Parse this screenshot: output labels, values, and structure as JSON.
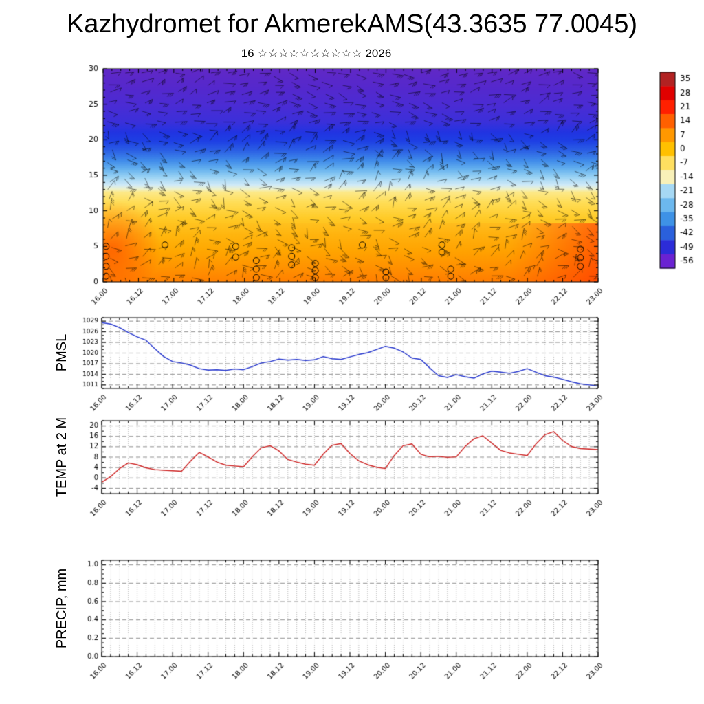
{
  "title": "Kazhydromet for AkmerekAMS(43.3635 77.0045)",
  "subtitle": "16 ☆☆☆☆☆☆☆☆☆☆ 2026",
  "time_axis": {
    "span_hours": 168,
    "major_step_hours": 12,
    "minor_step_hours": 3,
    "tick_labels": [
      "16.00",
      "16.12",
      "17.00",
      "17.12",
      "18.00",
      "18.12",
      "19.00",
      "19.12",
      "20.00",
      "20.12",
      "21.00",
      "21.12",
      "22.00",
      "22.12",
      "23.00"
    ]
  },
  "chart_data": [
    {
      "type": "heatmap",
      "name": "wind-temperature-height-cross-section",
      "ylim": [
        0,
        30
      ],
      "ytick_major": 5,
      "ytick_minor": 1,
      "colorbar_levels": [
        "35",
        "28",
        "21",
        "14",
        "7",
        "0",
        "-7",
        "-14",
        "-21",
        "-28",
        "-35",
        "-42",
        "-49",
        "-56"
      ],
      "colorbar_colors": [
        "#b22222",
        "#e00000",
        "#ff2000",
        "#ff6000",
        "#ff9800",
        "#ffc000",
        "#ffdf60",
        "#f8f0b8",
        "#a6d8f4",
        "#6cb8ee",
        "#3e92e6",
        "#2a60dc",
        "#2c2cd8",
        "#6a22d2"
      ],
      "gradient": [
        {
          "f": 0.0,
          "c": "#6128c6"
        },
        {
          "f": 0.08,
          "c": "#5628cc"
        },
        {
          "f": 0.17,
          "c": "#4b2cd4"
        },
        {
          "f": 0.25,
          "c": "#3b30da"
        },
        {
          "f": 0.3,
          "c": "#2134e2"
        },
        {
          "f": 0.34,
          "c": "#1e40e4"
        },
        {
          "f": 0.38,
          "c": "#2a5ce4"
        },
        {
          "f": 0.43,
          "c": "#3f8aea"
        },
        {
          "f": 0.47,
          "c": "#64b0ee"
        },
        {
          "f": 0.51,
          "c": "#9cd4f4"
        },
        {
          "f": 0.545,
          "c": "#cfeaf8"
        },
        {
          "f": 0.565,
          "c": "#eef2cc"
        },
        {
          "f": 0.58,
          "c": "#fde988"
        },
        {
          "f": 0.63,
          "c": "#ffdd55"
        },
        {
          "f": 0.7,
          "c": "#ffcb28"
        },
        {
          "f": 0.78,
          "c": "#ffb80e"
        },
        {
          "f": 0.86,
          "c": "#ffa800"
        },
        {
          "f": 0.93,
          "c": "#ff9600"
        },
        {
          "f": 1.0,
          "c": "#ff8200"
        }
      ],
      "cloud_markers": [
        {
          "t": 1,
          "h": [
            0.8,
            2.2,
            3.6,
            5.0
          ]
        },
        {
          "t": 21,
          "h": [
            5.2
          ]
        },
        {
          "t": 45,
          "h": [
            3.5,
            5.0
          ]
        },
        {
          "t": 52,
          "h": [
            0.6,
            1.8,
            3.0
          ]
        },
        {
          "t": 64,
          "h": [
            2.4,
            3.6,
            4.8
          ]
        },
        {
          "t": 72,
          "h": [
            0.6,
            1.6,
            2.6
          ]
        },
        {
          "t": 88,
          "h": [
            5.2
          ]
        },
        {
          "t": 96,
          "h": [
            0.6,
            1.4
          ]
        },
        {
          "t": 115,
          "h": [
            4.2,
            5.2
          ]
        },
        {
          "t": 118,
          "h": [
            0.8,
            1.8
          ]
        },
        {
          "t": 162,
          "h": [
            2.2,
            3.4,
            4.6
          ]
        }
      ]
    },
    {
      "type": "line",
      "ylabel": "PMSL",
      "color": "#2233cc",
      "ylim": [
        1010,
        1030
      ],
      "yminor": 1,
      "ytick_vals": [
        1029,
        1026,
        1023,
        1020,
        1017,
        1014,
        1011
      ],
      "ytick_labels": [
        "1029",
        "1026",
        "1023",
        "1020",
        "1017",
        "1014",
        "1011"
      ],
      "points": [
        [
          0,
          1028.6
        ],
        [
          3,
          1028.2
        ],
        [
          6,
          1027.2
        ],
        [
          9,
          1025.8
        ],
        [
          12,
          1024.6
        ],
        [
          15,
          1023.6
        ],
        [
          18,
          1021.2
        ],
        [
          21,
          1019.0
        ],
        [
          24,
          1017.6
        ],
        [
          27,
          1017.2
        ],
        [
          30,
          1016.6
        ],
        [
          33,
          1015.6
        ],
        [
          36,
          1015.2
        ],
        [
          39,
          1015.3
        ],
        [
          42,
          1015.1
        ],
        [
          45,
          1015.5
        ],
        [
          48,
          1015.3
        ],
        [
          51,
          1016.2
        ],
        [
          54,
          1017.2
        ],
        [
          57,
          1017.6
        ],
        [
          60,
          1018.3
        ],
        [
          63,
          1018.0
        ],
        [
          66,
          1018.2
        ],
        [
          69,
          1017.9
        ],
        [
          72,
          1018.1
        ],
        [
          75,
          1019.0
        ],
        [
          78,
          1018.4
        ],
        [
          81,
          1018.2
        ],
        [
          84,
          1018.9
        ],
        [
          87,
          1019.6
        ],
        [
          90,
          1020.1
        ],
        [
          93,
          1021.0
        ],
        [
          96,
          1021.9
        ],
        [
          99,
          1021.4
        ],
        [
          102,
          1020.3
        ],
        [
          105,
          1018.6
        ],
        [
          108,
          1018.2
        ],
        [
          111,
          1015.8
        ],
        [
          114,
          1013.6
        ],
        [
          117,
          1013.1
        ],
        [
          120,
          1013.9
        ],
        [
          123,
          1013.3
        ],
        [
          126,
          1012.9
        ],
        [
          129,
          1014.1
        ],
        [
          132,
          1014.9
        ],
        [
          135,
          1014.6
        ],
        [
          138,
          1014.3
        ],
        [
          141,
          1014.8
        ],
        [
          144,
          1015.6
        ],
        [
          147,
          1014.6
        ],
        [
          150,
          1013.6
        ],
        [
          153,
          1013.2
        ],
        [
          156,
          1012.6
        ],
        [
          159,
          1011.9
        ],
        [
          162,
          1011.3
        ],
        [
          165,
          1011.0
        ],
        [
          168,
          1010.7
        ]
      ]
    },
    {
      "type": "line",
      "ylabel": "TEMP at 2 M",
      "color": "#cc2020",
      "ylim": [
        -6,
        22
      ],
      "yminor": 2,
      "ytick_vals": [
        20,
        16,
        12,
        8,
        4,
        0,
        -4
      ],
      "ytick_labels": [
        "20",
        "16",
        "12",
        "8",
        "4",
        "0",
        "-4"
      ],
      "points": [
        [
          0,
          -1.6
        ],
        [
          3,
          0.5
        ],
        [
          6,
          3.6
        ],
        [
          9,
          5.8
        ],
        [
          12,
          5.1
        ],
        [
          15,
          3.9
        ],
        [
          18,
          3.2
        ],
        [
          21,
          3.0
        ],
        [
          24,
          2.8
        ],
        [
          27,
          2.6
        ],
        [
          30,
          6.4
        ],
        [
          33,
          9.8
        ],
        [
          36,
          8.1
        ],
        [
          39,
          6.1
        ],
        [
          42,
          4.9
        ],
        [
          45,
          4.6
        ],
        [
          48,
          4.3
        ],
        [
          51,
          8.2
        ],
        [
          54,
          11.6
        ],
        [
          57,
          12.4
        ],
        [
          60,
          10.4
        ],
        [
          63,
          7.1
        ],
        [
          66,
          6.1
        ],
        [
          69,
          5.3
        ],
        [
          72,
          4.9
        ],
        [
          75,
          9.2
        ],
        [
          78,
          12.6
        ],
        [
          81,
          13.2
        ],
        [
          84,
          9.4
        ],
        [
          87,
          6.6
        ],
        [
          90,
          5.1
        ],
        [
          93,
          4.1
        ],
        [
          96,
          3.6
        ],
        [
          99,
          8.6
        ],
        [
          102,
          12.4
        ],
        [
          105,
          13.1
        ],
        [
          108,
          9.1
        ],
        [
          111,
          8.1
        ],
        [
          114,
          8.3
        ],
        [
          117,
          7.9
        ],
        [
          120,
          8.1
        ],
        [
          123,
          12.1
        ],
        [
          126,
          15.1
        ],
        [
          129,
          16.2
        ],
        [
          132,
          13.4
        ],
        [
          135,
          10.6
        ],
        [
          138,
          9.6
        ],
        [
          141,
          9.1
        ],
        [
          144,
          8.6
        ],
        [
          147,
          13.1
        ],
        [
          150,
          16.6
        ],
        [
          153,
          17.8
        ],
        [
          156,
          14.4
        ],
        [
          159,
          12.1
        ],
        [
          162,
          11.3
        ],
        [
          165,
          11.1
        ],
        [
          168,
          10.9
        ]
      ]
    },
    {
      "type": "line",
      "ylabel": "PRECIP, mm",
      "color": "#2233cc",
      "ylim": [
        0,
        1.05
      ],
      "yminor": 0.05,
      "ytick_vals": [
        1.0,
        0.8,
        0.6,
        0.4,
        0.2,
        0.0
      ],
      "ytick_labels": [
        "1.0",
        "0.8",
        "0.6",
        "0.4",
        "0.2",
        "0.0"
      ],
      "points": []
    }
  ]
}
